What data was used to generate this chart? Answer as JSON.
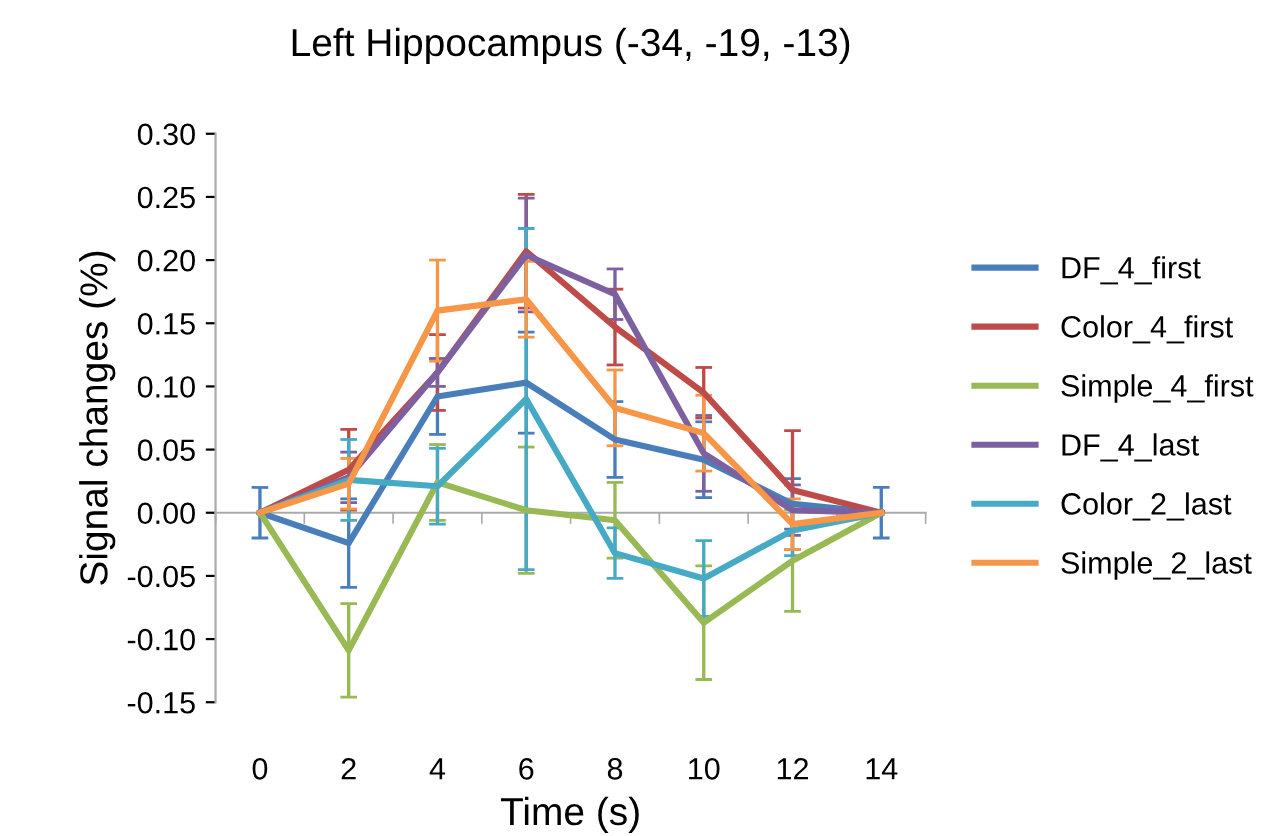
{
  "chart_data": {
    "type": "line",
    "title": "Left Hippocampus (-34, -19, -13)",
    "xlabel": "Time (s)",
    "ylabel": "Signal changes (%)",
    "categories": [
      "0",
      "2",
      "4",
      "6",
      "8",
      "10",
      "12",
      "14"
    ],
    "ylim": [
      -0.15,
      0.3
    ],
    "yticks": [
      {
        "value": -0.15,
        "label": "-0.15"
      },
      {
        "value": -0.1,
        "label": "-0.10"
      },
      {
        "value": -0.05,
        "label": "-0.05"
      },
      {
        "value": 0,
        "label": "0.00"
      },
      {
        "value": 0.05,
        "label": "0.05"
      },
      {
        "value": 0.1,
        "label": "0.10"
      },
      {
        "value": 0.15,
        "label": "0.15"
      },
      {
        "value": 0.2,
        "label": "0.20"
      },
      {
        "value": 0.25,
        "label": "0.25"
      },
      {
        "value": 0.3,
        "label": "0.30"
      }
    ],
    "legend": "right",
    "marker": "none",
    "line_style": "solid",
    "series": [
      {
        "name": "DF_4_first",
        "color": "#4a7ebb",
        "values": [
          0,
          -0.024,
          0.092,
          0.103,
          0.058,
          0.042,
          0.007,
          0
        ],
        "errors": [
          0.02,
          0.035,
          0.03,
          0.04,
          0.03,
          0.03,
          0.02,
          0.02
        ]
      },
      {
        "name": "Color_4_first",
        "color": "#be4b48",
        "values": [
          0,
          0.034,
          0.111,
          0.207,
          0.147,
          0.095,
          0.018,
          0
        ],
        "errors": [
          null,
          0.032,
          0.03,
          0.045,
          0.03,
          0.02,
          0.047,
          null
        ]
      },
      {
        "name": "Simple_4_first",
        "color": "#98b954",
        "values": [
          0,
          -0.109,
          0.024,
          0.002,
          -0.006,
          -0.087,
          -0.038,
          0
        ],
        "errors": [
          null,
          0.037,
          0.03,
          0.05,
          0.03,
          0.045,
          0.04,
          null
        ]
      },
      {
        "name": "DF_4_last",
        "color": "#7d60a0",
        "values": [
          0,
          0.028,
          0.111,
          0.204,
          0.173,
          0.047,
          0.002,
          0
        ],
        "errors": [
          null,
          0.02,
          0.011,
          0.045,
          0.02,
          0.03,
          0.02,
          null
        ]
      },
      {
        "name": "Color_2_last",
        "color": "#46aac5",
        "values": [
          0,
          0.026,
          0.021,
          0.09,
          -0.032,
          -0.052,
          -0.014,
          0
        ],
        "errors": [
          null,
          0.032,
          0.03,
          0.135,
          0.02,
          0.03,
          0.02,
          null
        ]
      },
      {
        "name": "Simple_2_last",
        "color": "#f79646",
        "values": [
          0,
          0.023,
          0.16,
          0.169,
          0.083,
          0.063,
          -0.009,
          0
        ],
        "errors": [
          null,
          0.02,
          0.04,
          0.03,
          0.03,
          0.03,
          0.02,
          null
        ]
      }
    ]
  }
}
